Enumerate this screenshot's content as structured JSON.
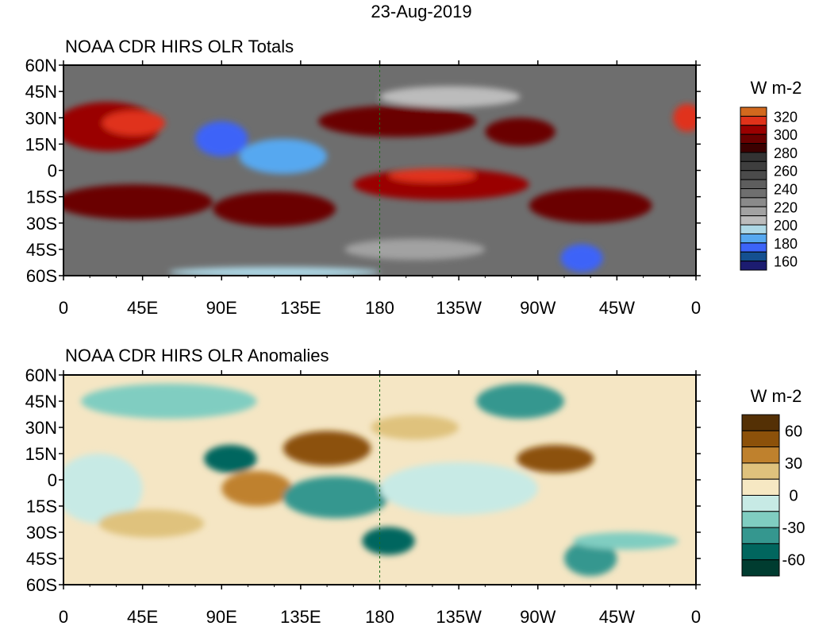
{
  "date_title": "23-Aug-2019",
  "panels": [
    {
      "title": "NOAA CDR HIRS OLR Totals",
      "units": "W m-2",
      "background": "#6e6e6e",
      "colorbar": {
        "colors": [
          "#d2691e",
          "#e0321a",
          "#9a0000",
          "#6a0000",
          "#3c0000",
          "#333333",
          "#3e3e3e",
          "#4b4b4b",
          "#5e5e5e",
          "#6f6f6f",
          "#8a8a8a",
          "#a2a2a2",
          "#bcbcbc",
          "#add8e6",
          "#56a8f0",
          "#3c64f8",
          "#145090",
          "#1c1c70"
        ],
        "labels": [
          "320",
          "300",
          "280",
          "260",
          "240",
          "220",
          "200",
          "180",
          "160"
        ]
      },
      "blobs": [
        {
          "lon": 25,
          "lat": 25,
          "rx": 30,
          "ry": 14,
          "color": "#9a0000"
        },
        {
          "lon": 40,
          "lat": 27,
          "rx": 18,
          "ry": 7,
          "color": "#e0321a"
        },
        {
          "lon": 90,
          "lat": 18,
          "rx": 15,
          "ry": 10,
          "color": "#3c64f8"
        },
        {
          "lon": 125,
          "lat": 8,
          "rx": 25,
          "ry": 10,
          "color": "#56a8f0"
        },
        {
          "lon": 40,
          "lat": -18,
          "rx": 45,
          "ry": 10,
          "color": "#6a0000"
        },
        {
          "lon": 120,
          "lat": -22,
          "rx": 35,
          "ry": 10,
          "color": "#6a0000"
        },
        {
          "lon": 215,
          "lat": -8,
          "rx": 50,
          "ry": 9,
          "color": "#9a0000"
        },
        {
          "lon": 210,
          "lat": -3,
          "rx": 25,
          "ry": 4,
          "color": "#e0321a"
        },
        {
          "lon": 190,
          "lat": 28,
          "rx": 45,
          "ry": 9,
          "color": "#6a0000"
        },
        {
          "lon": 260,
          "lat": 22,
          "rx": 20,
          "ry": 8,
          "color": "#6a0000"
        },
        {
          "lon": 300,
          "lat": -20,
          "rx": 35,
          "ry": 10,
          "color": "#6a0000"
        },
        {
          "lon": 295,
          "lat": -50,
          "rx": 12,
          "ry": 8,
          "color": "#3c64f8"
        },
        {
          "lon": 220,
          "lat": 42,
          "rx": 40,
          "ry": 6,
          "color": "#bcbcbc"
        },
        {
          "lon": 200,
          "lat": -45,
          "rx": 40,
          "ry": 6,
          "color": "#a2a2a2"
        },
        {
          "lon": 120,
          "lat": -58,
          "rx": 60,
          "ry": 3,
          "color": "#add8e6"
        },
        {
          "lon": 355,
          "lat": 30,
          "rx": 8,
          "ry": 8,
          "color": "#e0321a"
        }
      ]
    },
    {
      "title": "NOAA CDR HIRS OLR Anomalies",
      "units": "W m-2",
      "background": "#f5e6c4",
      "colorbar": {
        "colors": [
          "#543005",
          "#8c510a",
          "#bf812d",
          "#dfc27d",
          "#f6e8c3",
          "#c7eae5",
          "#80cdc1",
          "#35978f",
          "#01665e",
          "#003c30"
        ],
        "labels": [
          "60",
          "30",
          "0",
          "-30",
          "-60"
        ]
      },
      "blobs": [
        {
          "lon": 60,
          "lat": 45,
          "rx": 50,
          "ry": 10,
          "color": "#80cdc1"
        },
        {
          "lon": 110,
          "lat": -5,
          "rx": 20,
          "ry": 10,
          "color": "#bf812d"
        },
        {
          "lon": 150,
          "lat": 18,
          "rx": 25,
          "ry": 10,
          "color": "#8c510a"
        },
        {
          "lon": 155,
          "lat": -10,
          "rx": 30,
          "ry": 12,
          "color": "#35978f"
        },
        {
          "lon": 95,
          "lat": 12,
          "rx": 15,
          "ry": 8,
          "color": "#01665e"
        },
        {
          "lon": 225,
          "lat": -5,
          "rx": 45,
          "ry": 15,
          "color": "#c7eae5"
        },
        {
          "lon": 280,
          "lat": 12,
          "rx": 22,
          "ry": 8,
          "color": "#8c510a"
        },
        {
          "lon": 260,
          "lat": 45,
          "rx": 25,
          "ry": 10,
          "color": "#35978f"
        },
        {
          "lon": 200,
          "lat": 30,
          "rx": 25,
          "ry": 7,
          "color": "#dfc27d"
        },
        {
          "lon": 300,
          "lat": -45,
          "rx": 15,
          "ry": 10,
          "color": "#35978f"
        },
        {
          "lon": 320,
          "lat": -35,
          "rx": 30,
          "ry": 5,
          "color": "#80cdc1"
        },
        {
          "lon": 20,
          "lat": -5,
          "rx": 25,
          "ry": 20,
          "color": "#c7eae5"
        },
        {
          "lon": 185,
          "lat": -35,
          "rx": 15,
          "ry": 8,
          "color": "#01665e"
        },
        {
          "lon": 50,
          "lat": -25,
          "rx": 30,
          "ry": 8,
          "color": "#dfc27d"
        }
      ]
    }
  ],
  "axes": {
    "lat_labels": [
      "60N",
      "45N",
      "30N",
      "15N",
      "0",
      "15S",
      "30S",
      "45S",
      "60S"
    ],
    "lon_labels": [
      "0",
      "45E",
      "90E",
      "135E",
      "180",
      "135W",
      "90W",
      "45W",
      "0"
    ]
  }
}
